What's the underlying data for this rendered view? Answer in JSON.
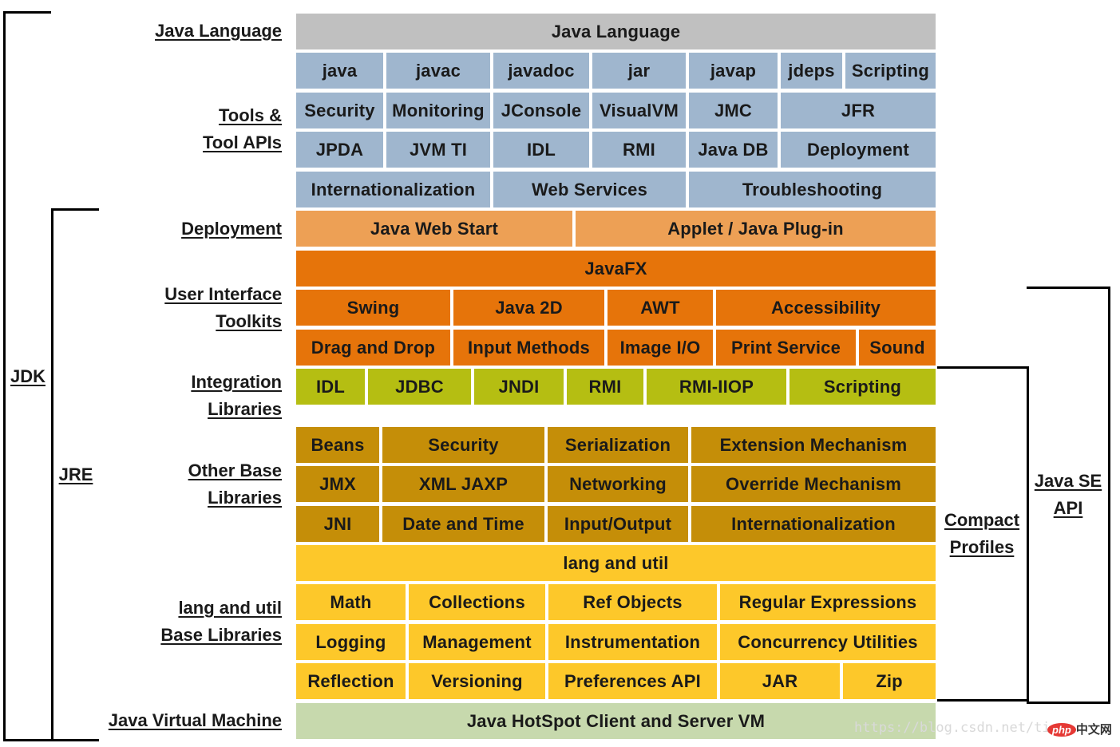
{
  "left_labels": {
    "java_language": "Java Language",
    "tools_line1": "Tools &",
    "tools_line2": "Tool APIs",
    "deployment": "Deployment",
    "ui_line1": "User Interface",
    "ui_line2": "Toolkits",
    "integration_line1": "Integration",
    "integration_line2": "Libraries",
    "other_line1": "Other Base",
    "other_line2": "Libraries",
    "lang_line1": "lang and util",
    "lang_line2": "Base Libraries",
    "jvm": "Java Virtual Machine"
  },
  "brackets": {
    "jdk": "JDK",
    "jre": "JRE",
    "compact_line1": "Compact",
    "compact_line2": "Profiles",
    "javase_line1": "Java SE",
    "javase_line2": "API"
  },
  "rows": {
    "java_language": "Java Language",
    "tools_row1": [
      "java",
      "javac",
      "javadoc",
      "jar",
      "javap",
      "jdeps",
      "Scripting"
    ],
    "tools_row2": [
      "Security",
      "Monitoring",
      "JConsole",
      "VisualVM",
      "JMC",
      "JFR"
    ],
    "tools_row3": [
      "JPDA",
      "JVM TI",
      "IDL",
      "RMI",
      "Java DB",
      "Deployment"
    ],
    "tools_row4": [
      "Internationalization",
      "Web Services",
      "Troubleshooting"
    ],
    "deployment": [
      "Java Web Start",
      "Applet / Java Plug-in"
    ],
    "javafx": "JavaFX",
    "ui_row1": [
      "Swing",
      "Java 2D",
      "AWT",
      "Accessibility"
    ],
    "ui_row2": [
      "Drag and Drop",
      "Input Methods",
      "Image I/O",
      "Print Service",
      "Sound"
    ],
    "integration": [
      "IDL",
      "JDBC",
      "JNDI",
      "RMI",
      "RMI-IIOP",
      "Scripting"
    ],
    "other_row1": [
      "Beans",
      "Security",
      "Serialization",
      "Extension Mechanism"
    ],
    "other_row2": [
      "JMX",
      "XML JAXP",
      "Networking",
      "Override Mechanism"
    ],
    "other_row3": [
      "JNI",
      "Date and Time",
      "Input/Output",
      "Internationalization"
    ],
    "lang_util": "lang and util",
    "lang_row1": [
      "Math",
      "Collections",
      "Ref Objects",
      "Regular Expressions"
    ],
    "lang_row2": [
      "Logging",
      "Management",
      "Instrumentation",
      "Concurrency Utilities"
    ],
    "lang_row3": [
      "Reflection",
      "Versioning",
      "Preferences API",
      "JAR",
      "Zip"
    ],
    "jvm": "Java HotSpot Client and Server VM"
  },
  "watermark": "https://blog.csdn.net/ti",
  "logo": {
    "badge": "php",
    "text": "中文网"
  },
  "colors": {
    "gray": "#c0c0c0",
    "blue": "#9fb6ce",
    "light_orange": "#eda055",
    "orange": "#e6740a",
    "green": "#b5be12",
    "brown": "#c58e08",
    "yellow": "#fdc82a",
    "pale_green": "#c7d9ad"
  }
}
